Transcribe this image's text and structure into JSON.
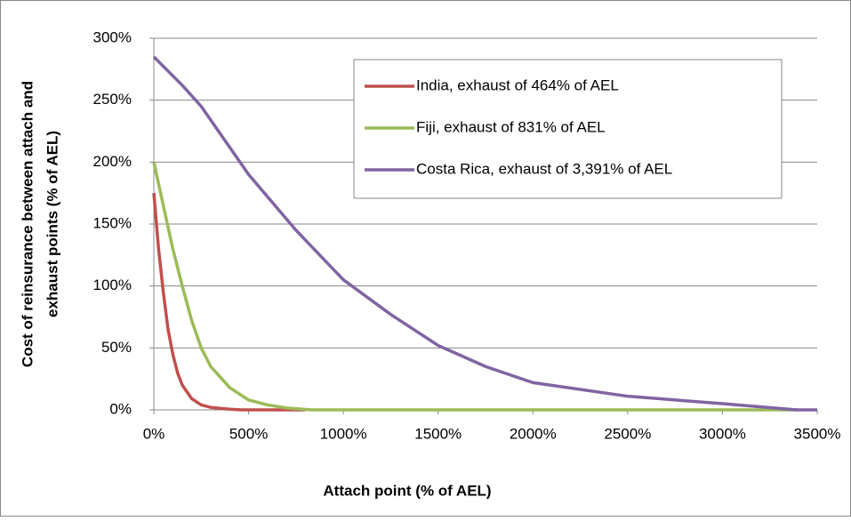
{
  "chart_data": {
    "type": "line",
    "x_label": "Attach point (% of AEL)",
    "y_label": [
      "Cost of reinsurance between attach and",
      "exhaust points (% of AEL)"
    ],
    "xlim": [
      0,
      3500
    ],
    "xticks": [
      {
        "value": 0,
        "label": "0%"
      },
      {
        "value": 500,
        "label": "500%"
      },
      {
        "value": 1000,
        "label": "1000%"
      },
      {
        "value": 1500,
        "label": "1500%"
      },
      {
        "value": 2000,
        "label": "2000%"
      },
      {
        "value": 2500,
        "label": "2500%"
      },
      {
        "value": 3000,
        "label": "3000%"
      },
      {
        "value": 3500,
        "label": "3500%"
      }
    ],
    "ylim": [
      0,
      300
    ],
    "yticks": [
      {
        "value": 0,
        "label": "0%"
      },
      {
        "value": 50,
        "label": "50%"
      },
      {
        "value": 100,
        "label": "100%"
      },
      {
        "value": 150,
        "label": "150%"
      },
      {
        "value": 200,
        "label": "200%"
      },
      {
        "value": 250,
        "label": "250%"
      },
      {
        "value": 300,
        "label": "300%"
      }
    ],
    "grid": true,
    "legend": "upper right",
    "series": [
      {
        "name": "India, exhaust of 464% of AEL",
        "color": "#c0504d",
        "x": [
          0,
          25,
          50,
          75,
          100,
          125,
          150,
          200,
          250,
          300,
          400,
          464,
          800
        ],
        "values": [
          175,
          130,
          95,
          65,
          45,
          30,
          20,
          9,
          4,
          2,
          0.5,
          0,
          0
        ]
      },
      {
        "name": "Fiji, exhaust of 831% of AEL",
        "color": "#9bbb59",
        "x": [
          0,
          50,
          100,
          150,
          200,
          250,
          300,
          400,
          500,
          600,
          700,
          831,
          3400
        ],
        "values": [
          200,
          165,
          130,
          100,
          72,
          50,
          35,
          18,
          8,
          4,
          1.5,
          0,
          0
        ]
      },
      {
        "name": "Costa Rica, exhaust of 3,391% of AEL",
        "color": "#8064a2",
        "x": [
          0,
          150,
          250,
          500,
          750,
          1000,
          1250,
          1500,
          1750,
          2000,
          2500,
          3000,
          3391,
          3500
        ],
        "values": [
          285,
          262,
          245,
          190,
          145,
          105,
          77,
          52,
          35,
          22,
          11,
          5,
          0,
          0
        ]
      }
    ]
  }
}
